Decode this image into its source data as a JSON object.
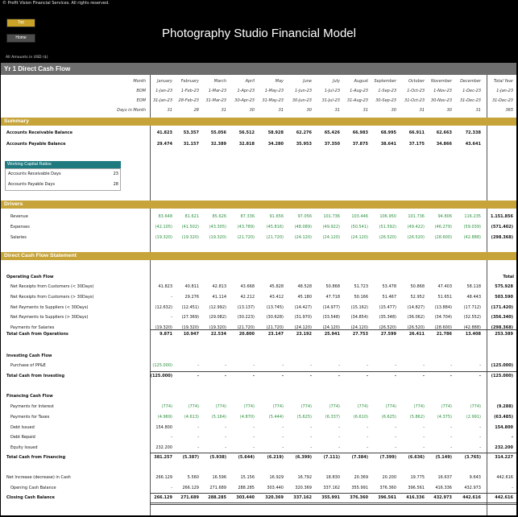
{
  "copyright": "© Profit Vision Financial Services. All rights reserved.",
  "nav": {
    "top_label": "Top",
    "home_label": "Home"
  },
  "title": "Photography Studio Financial Model",
  "units_label": "All Amounts in  USD ($)",
  "sheet_title": "Yr 1 Direct Cash Flow",
  "header": {
    "month_label": "Month",
    "bom_label": "BOM",
    "eom_label": "EOM",
    "days_label": "Days in Month",
    "months": [
      "January",
      "February",
      "March",
      "April",
      "May",
      "June",
      "July",
      "August",
      "September",
      "October",
      "November",
      "December",
      "Total Year"
    ],
    "bom": [
      "1-Jan-23",
      "1-Feb-23",
      "1-Mar-23",
      "1-Apr-23",
      "1-May-23",
      "1-Jun-23",
      "1-Jul-23",
      "1-Aug-23",
      "1-Sep-23",
      "1-Oct-23",
      "1-Nov-23",
      "1-Dec-23",
      "1-Jan-23"
    ],
    "eom": [
      "31-Jan-23",
      "28-Feb-23",
      "31-Mar-23",
      "30-Apr-23",
      "31-May-23",
      "30-Jun-23",
      "31-Jul-23",
      "31-Aug-23",
      "30-Sep-23",
      "31-Oct-23",
      "30-Nov-23",
      "31-Dec-23",
      "31-Dec-23"
    ],
    "days": [
      "31",
      "28",
      "31",
      "30",
      "31",
      "30",
      "31",
      "31",
      "30",
      "31",
      "30",
      "31",
      "365"
    ]
  },
  "summary": {
    "title": "Summary",
    "ar_label": "Accounts Receivable Balance",
    "ar": [
      "41.823",
      "53.357",
      "55.056",
      "56.512",
      "58.928",
      "62.276",
      "65.426",
      "66.983",
      "68.995",
      "66.911",
      "62.663",
      "72.338",
      ""
    ],
    "ap_label": "Accounts Payable Balance",
    "ap": [
      "29.474",
      "31.157",
      "32.389",
      "32.818",
      "34.280",
      "35.953",
      "37.350",
      "37.875",
      "38.641",
      "37.175",
      "34.866",
      "43.641",
      ""
    ]
  },
  "wc": {
    "title": "Working Capital Ratios",
    "ar_days_label": "Accounts Receivable Days",
    "ar_days": "23",
    "ap_days_label": "Accounts Payable Days",
    "ap_days": "28"
  },
  "drivers": {
    "title": "Drivers",
    "rows": [
      {
        "label": "Revenue",
        "vals": [
          "83.648",
          "81.621",
          "85.626",
          "87.336",
          "91.656",
          "97.056",
          "101.736",
          "103.446",
          "106.950",
          "101.736",
          "94.806",
          "116.235",
          "1.151.856"
        ]
      },
      {
        "label": "Expenses",
        "vals": [
          "(42.105)",
          "(41.502)",
          "(43.305)",
          "(43.789)",
          "(45.816)",
          "(48.089)",
          "(49.922)",
          "(50.541)",
          "(51.592)",
          "(49.422)",
          "(46.279)",
          "(59.039)",
          "(571.402)"
        ]
      },
      {
        "label": "Salaries",
        "vals": [
          "(19.320)",
          "(19.320)",
          "(19.320)",
          "(21.720)",
          "(21.720)",
          "(24.120)",
          "(24.120)",
          "(24.120)",
          "(26.520)",
          "(26.520)",
          "(28.600)",
          "(42.888)",
          "(298.368)"
        ]
      }
    ]
  },
  "dcf": {
    "title": "Direct Cash Flow Statement",
    "total_label": "Total",
    "op_title": "Operating Cash Flow",
    "op_rows": [
      {
        "label": "Net Receipts from Customers (< 30Days)",
        "vals": [
          "41.823",
          "40.811",
          "42.813",
          "43.668",
          "45.828",
          "48.528",
          "50.868",
          "51.723",
          "53.478",
          "50.868",
          "47.403",
          "58.118",
          "575.928"
        ]
      },
      {
        "label": "Net Receipts from Customers (> 30Days)",
        "vals": [
          "-",
          "29.276",
          "41.114",
          "42.212",
          "43.412",
          "45.180",
          "47.718",
          "50.166",
          "51.467",
          "52.952",
          "51.651",
          "48.443",
          "503.590"
        ]
      },
      {
        "label": "Net Payments to Suppliers (< 30Days)",
        "vals": [
          "(12.632)",
          "(12.451)",
          "(12.992)",
          "(13.137)",
          "(13.745)",
          "(14.427)",
          "(14.977)",
          "(15.162)",
          "(15.477)",
          "(14.827)",
          "(13.884)",
          "(17.712)",
          "(171.420)"
        ]
      },
      {
        "label": "Net Payments to Suppliers (> 30Days)",
        "vals": [
          "-",
          "(27.369)",
          "(29.082)",
          "(30.223)",
          "(30.628)",
          "(31.970)",
          "(33.548)",
          "(34.854)",
          "(35.348)",
          "(36.062)",
          "(34.704)",
          "(32.552)",
          "(356.340)"
        ]
      },
      {
        "label": "Payments for Salaries",
        "vals": [
          "(19.320)",
          "(19.320)",
          "(19.320)",
          "(21.720)",
          "(21.720)",
          "(24.120)",
          "(24.120)",
          "(24.120)",
          "(26.520)",
          "(26.520)",
          "(28.600)",
          "(42.888)",
          "(298.368)"
        ]
      }
    ],
    "op_total_label": "Total Cash from Operations",
    "op_total": [
      "9.871",
      "10.947",
      "22.534",
      "20.800",
      "23.147",
      "23.192",
      "25.941",
      "27.753",
      "27.599",
      "26.411",
      "21.786",
      "13.408",
      "253.389"
    ],
    "inv_title": "Investing Cash Flow",
    "inv_rows": [
      {
        "label": "Purchase of PP&E",
        "vals": [
          "(125.000)",
          "-",
          "-",
          "-",
          "-",
          "-",
          "-",
          "-",
          "-",
          "-",
          "-",
          "-",
          "(125.000)"
        ]
      }
    ],
    "inv_total_label": "Total Cash from Investing",
    "inv_total": [
      "(125.000)",
      "-",
      "-",
      "-",
      "-",
      "-",
      "-",
      "-",
      "-",
      "-",
      "-",
      "-",
      "(125.000)"
    ],
    "fin_title": "Financing Cash Flow",
    "fin_rows": [
      {
        "label": "Payments for Interest",
        "vals": [
          "(774)",
          "(774)",
          "(774)",
          "(774)",
          "(774)",
          "(774)",
          "(774)",
          "(774)",
          "(774)",
          "(774)",
          "(774)",
          "(774)",
          "(9.288)"
        ]
      },
      {
        "label": "Payments for Taxes",
        "vals": [
          "(4.969)",
          "(4.613)",
          "(5.164)",
          "(4.870)",
          "(5.444)",
          "(5.625)",
          "(6.337)",
          "(6.610)",
          "(6.625)",
          "(5.862)",
          "(4.375)",
          "(2.991)",
          "(63.485)"
        ]
      },
      {
        "label": "Debt Issued",
        "vals": [
          "154.800",
          "-",
          "-",
          "-",
          "-",
          "-",
          "-",
          "-",
          "-",
          "-",
          "-",
          "-",
          "154.800"
        ]
      },
      {
        "label": "Debt Repaid",
        "vals": [
          "-",
          "-",
          "-",
          "-",
          "-",
          "-",
          "-",
          "-",
          "-",
          "-",
          "-",
          "-",
          "-"
        ]
      },
      {
        "label": "Equity Issued",
        "vals": [
          "232.200",
          "-",
          "-",
          "-",
          "-",
          "-",
          "-",
          "-",
          "-",
          "-",
          "-",
          "-",
          "232.200"
        ]
      }
    ],
    "fin_total_label": "Total Cash from Financing",
    "fin_total": [
      "381.257",
      "(5.387)",
      "(5.938)",
      "(5.644)",
      "(6.219)",
      "(6.399)",
      "(7.111)",
      "(7.384)",
      "(7.399)",
      "(6.636)",
      "(5.149)",
      "(3.765)",
      "314.227"
    ],
    "net_label": "Net Increase (decrease) in Cash",
    "net": [
      "266.129",
      "5.560",
      "16.596",
      "15.156",
      "16.929",
      "16.792",
      "18.830",
      "20.369",
      "20.200",
      "19.775",
      "16.637",
      "9.643",
      "442.616"
    ],
    "open_label": "Opening Cash Balance",
    "open": [
      "-",
      "266.129",
      "271.689",
      "288.285",
      "303.440",
      "320.369",
      "337.162",
      "355.991",
      "376.360",
      "396.561",
      "416.336",
      "432.973",
      "-"
    ],
    "close_label": "Closing Cash Balance",
    "close": [
      "266.129",
      "271.689",
      "288.285",
      "303.440",
      "320.369",
      "337.162",
      "355.991",
      "376.360",
      "396.561",
      "416.336",
      "432.973",
      "442.616",
      "442.616"
    ]
  }
}
